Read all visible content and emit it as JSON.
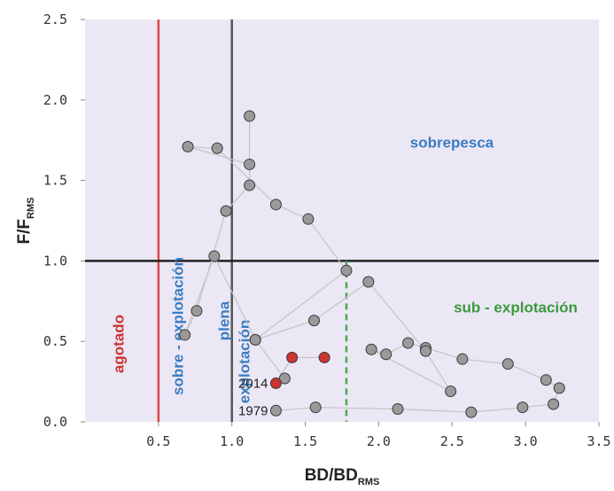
{
  "chart_data": {
    "type": "scatter",
    "xlabel": "BD/BD",
    "xlabel_sub": "RMS",
    "ylabel": "F/F",
    "ylabel_sub": "RMS",
    "xlim": [
      0,
      3.5
    ],
    "ylim": [
      0,
      2.5
    ],
    "x_ticks": [
      0.5,
      1.0,
      1.5,
      2.0,
      2.5,
      3.0,
      3.5
    ],
    "x_tick_labels": [
      "0.5",
      "1.0",
      "1.5",
      "2.0",
      "2.5",
      "3.0",
      "3.5"
    ],
    "y_ticks": [
      0,
      0.5,
      1.0,
      1.5,
      2.0,
      2.5
    ],
    "y_tick_labels": [
      "0.0",
      "0.5",
      "1.0",
      "1.5",
      "2.0",
      "2.5"
    ],
    "grid": false,
    "colors": {
      "background": "#ebe7f5",
      "points": "#9a9a9a",
      "highlight_points": "#cc3333",
      "path": "#c4c4c4",
      "agotado_line": "#e04545",
      "plena_line": "#555555",
      "ref_line": "#222222",
      "dashed_line": "#4aaa4a",
      "label_red": "#cc3333",
      "label_blue": "#3a7cc0",
      "label_green": "#3a9a3a"
    },
    "reference_lines": [
      {
        "orientation": "vertical",
        "value": 0.5,
        "style": "solid",
        "color": "#e04545"
      },
      {
        "orientation": "vertical",
        "value": 1.0,
        "style": "solid",
        "color": "#555555"
      },
      {
        "orientation": "horizontal",
        "value": 1.0,
        "style": "solid",
        "color": "#222222"
      },
      {
        "orientation": "vertical-segment",
        "value": 1.78,
        "y_range": [
          0,
          1.0
        ],
        "style": "dashed",
        "color": "#4aaa4a"
      }
    ],
    "zones": [
      {
        "text": "agotado",
        "rotated": true,
        "color": "#cc3333"
      },
      {
        "text": "sobre - explotación",
        "rotated": true,
        "color": "#3a7cc0"
      },
      {
        "text": "plena",
        "rotated": true,
        "color": "#3a7cc0"
      },
      {
        "text": "explotación",
        "rotated": true,
        "color": "#3a7cc0"
      },
      {
        "text": "sobrepesca",
        "rotated": false,
        "color": "#3a7cc0"
      },
      {
        "text": "sub - explotación",
        "rotated": false,
        "color": "#3a9a3a"
      }
    ],
    "annotations": [
      {
        "text": "1979",
        "x": 1.3,
        "y": 0.07
      },
      {
        "text": "2014",
        "x": 1.3,
        "y": 0.24
      }
    ],
    "series": [
      {
        "highlight": [
          0,
          0,
          0,
          0,
          0,
          0,
          0,
          0,
          0,
          0,
          0,
          0,
          0,
          0,
          0,
          0,
          0,
          0,
          0,
          0,
          0,
          0,
          0,
          0,
          0,
          0,
          0,
          0,
          0,
          0,
          0,
          0,
          0,
          1,
          1,
          1
        ],
        "x": [
          1.3,
          1.57,
          2.13,
          2.63,
          2.98,
          3.19,
          3.23,
          3.14,
          2.88,
          2.57,
          2.32,
          2.2,
          2.05,
          1.95,
          2.49,
          2.32,
          1.93,
          1.56,
          1.16,
          0.88,
          0.68,
          0.76,
          0.96,
          1.12,
          1.12,
          1.12,
          0.7,
          0.9,
          1.3,
          1.52,
          1.78,
          1.16,
          1.36,
          1.3,
          1.41,
          1.63
        ],
        "y": [
          0.07,
          0.09,
          0.08,
          0.06,
          0.09,
          0.11,
          0.21,
          0.26,
          0.36,
          0.39,
          0.46,
          0.49,
          0.42,
          0.45,
          0.19,
          0.44,
          0.87,
          0.63,
          0.51,
          1.03,
          0.54,
          0.69,
          1.31,
          1.47,
          1.9,
          1.6,
          1.71,
          1.7,
          1.35,
          1.26,
          0.94,
          0.51,
          0.27,
          0.24,
          0.4,
          0.4
        ]
      }
    ]
  }
}
